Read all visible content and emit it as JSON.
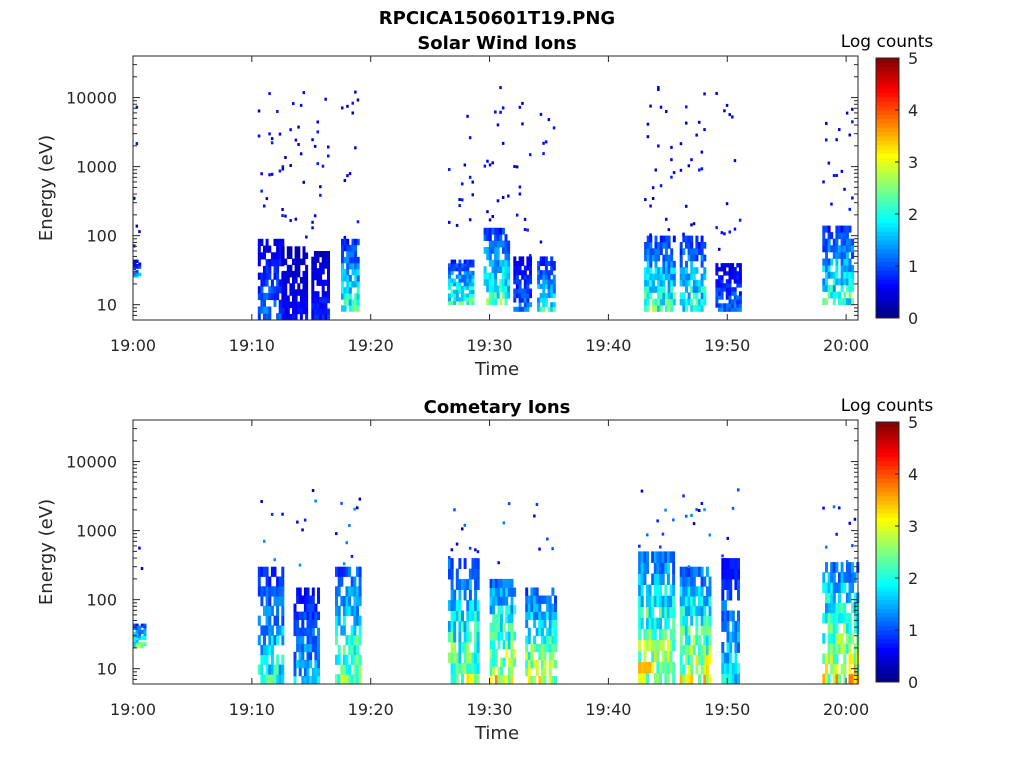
{
  "figure_title": "RPCICA150601T19.PNG",
  "chart_data": [
    {
      "type": "heatmap",
      "title": "Solar Wind Ions",
      "xlabel": "Time",
      "ylabel": "Energy (eV)",
      "xticks": [
        "19:00",
        "19:10",
        "19:20",
        "19:30",
        "19:40",
        "19:50",
        "20:00"
      ],
      "xlim": [
        "19:00",
        "20:01"
      ],
      "yscale": "log",
      "yticks": [
        "10",
        "100",
        "1000",
        "10000"
      ],
      "ylim": [
        6,
        40000
      ],
      "colorbar": {
        "label": "Log counts",
        "ticks": [
          "0",
          "1",
          "2",
          "3",
          "4",
          "5"
        ],
        "range": [
          0,
          5
        ],
        "colormap": "jet"
      },
      "activity_intervals": [
        {
          "start": "19:00.0",
          "end": "19:00.5",
          "peak_log_counts": 1.8,
          "low_energy_eV": [
            25,
            45
          ]
        },
        {
          "start": "19:10.5",
          "end": "19:12.5",
          "peak_log_counts": 1.5,
          "low_energy_eV": [
            6,
            90
          ]
        },
        {
          "start": "19:12.5",
          "end": "19:14.5",
          "peak_log_counts": 0.8,
          "low_energy_eV": [
            6,
            70
          ]
        },
        {
          "start": "19:15.0",
          "end": "19:16.5",
          "peak_log_counts": 1.0,
          "low_energy_eV": [
            6,
            60
          ]
        },
        {
          "start": "19:17.5",
          "end": "19:19.0",
          "peak_log_counts": 2.6,
          "low_energy_eV": [
            8,
            90
          ]
        },
        {
          "start": "19:26.5",
          "end": "19:28.5",
          "peak_log_counts": 2.8,
          "low_energy_eV": [
            10,
            45
          ]
        },
        {
          "start": "19:29.5",
          "end": "19:31.5",
          "peak_log_counts": 2.8,
          "low_energy_eV": [
            10,
            130
          ]
        },
        {
          "start": "19:32.0",
          "end": "19:33.5",
          "peak_log_counts": 1.5,
          "low_energy_eV": [
            8,
            50
          ]
        },
        {
          "start": "19:34.0",
          "end": "19:35.5",
          "peak_log_counts": 2.5,
          "low_energy_eV": [
            8,
            50
          ]
        },
        {
          "start": "19:43.0",
          "end": "19:45.5",
          "peak_log_counts": 2.8,
          "low_energy_eV": [
            8,
            100
          ]
        },
        {
          "start": "19:46.0",
          "end": "19:48.0",
          "peak_log_counts": 2.6,
          "low_energy_eV": [
            8,
            100
          ]
        },
        {
          "start": "19:49.0",
          "end": "19:51.0",
          "peak_log_counts": 1.5,
          "low_energy_eV": [
            8,
            40
          ]
        },
        {
          "start": "19:58.0",
          "end": "20:00.5",
          "peak_log_counts": 2.6,
          "low_energy_eV": [
            10,
            140
          ]
        }
      ]
    },
    {
      "type": "heatmap",
      "title": "Cometary Ions",
      "xlabel": "Time",
      "ylabel": "Energy (eV)",
      "xticks": [
        "19:00",
        "19:10",
        "19:20",
        "19:30",
        "19:40",
        "19:50",
        "20:00"
      ],
      "xlim": [
        "19:00",
        "20:01"
      ],
      "yscale": "log",
      "yticks": [
        "10",
        "100",
        "1000",
        "10000"
      ],
      "ylim": [
        6,
        40000
      ],
      "colorbar": {
        "label": "Log counts",
        "ticks": [
          "0",
          "1",
          "2",
          "3",
          "4",
          "5"
        ],
        "range": [
          0,
          5
        ],
        "colormap": "jet"
      },
      "activity_intervals": [
        {
          "start": "19:00.0",
          "end": "19:01.0",
          "peak_log_counts": 3.0,
          "low_energy_eV": [
            20,
            45
          ]
        },
        {
          "start": "19:10.5",
          "end": "19:12.5",
          "peak_log_counts": 2.5,
          "low_energy_eV": [
            6,
            300
          ]
        },
        {
          "start": "19:13.5",
          "end": "19:15.5",
          "peak_log_counts": 2.0,
          "low_energy_eV": [
            6,
            150
          ]
        },
        {
          "start": "19:17.0",
          "end": "19:19.0",
          "peak_log_counts": 3.2,
          "low_energy_eV": [
            6,
            300
          ]
        },
        {
          "start": "19:26.5",
          "end": "19:29.0",
          "peak_log_counts": 3.3,
          "low_energy_eV": [
            6,
            400
          ]
        },
        {
          "start": "19:30.0",
          "end": "19:32.0",
          "peak_log_counts": 3.8,
          "low_energy_eV": [
            6,
            200
          ]
        },
        {
          "start": "19:33.0",
          "end": "19:35.5",
          "peak_log_counts": 3.5,
          "low_energy_eV": [
            6,
            150
          ]
        },
        {
          "start": "19:42.5",
          "end": "19:45.5",
          "peak_log_counts": 3.8,
          "low_energy_eV": [
            6,
            500
          ]
        },
        {
          "start": "19:46.0",
          "end": "19:48.5",
          "peak_log_counts": 3.7,
          "low_energy_eV": [
            6,
            300
          ]
        },
        {
          "start": "19:49.5",
          "end": "19:51.0",
          "peak_log_counts": 2.2,
          "low_energy_eV": [
            6,
            400
          ]
        },
        {
          "start": "19:58.0",
          "end": "20:01.0",
          "peak_log_counts": 3.8,
          "low_energy_eV": [
            6,
            350
          ]
        }
      ]
    }
  ]
}
